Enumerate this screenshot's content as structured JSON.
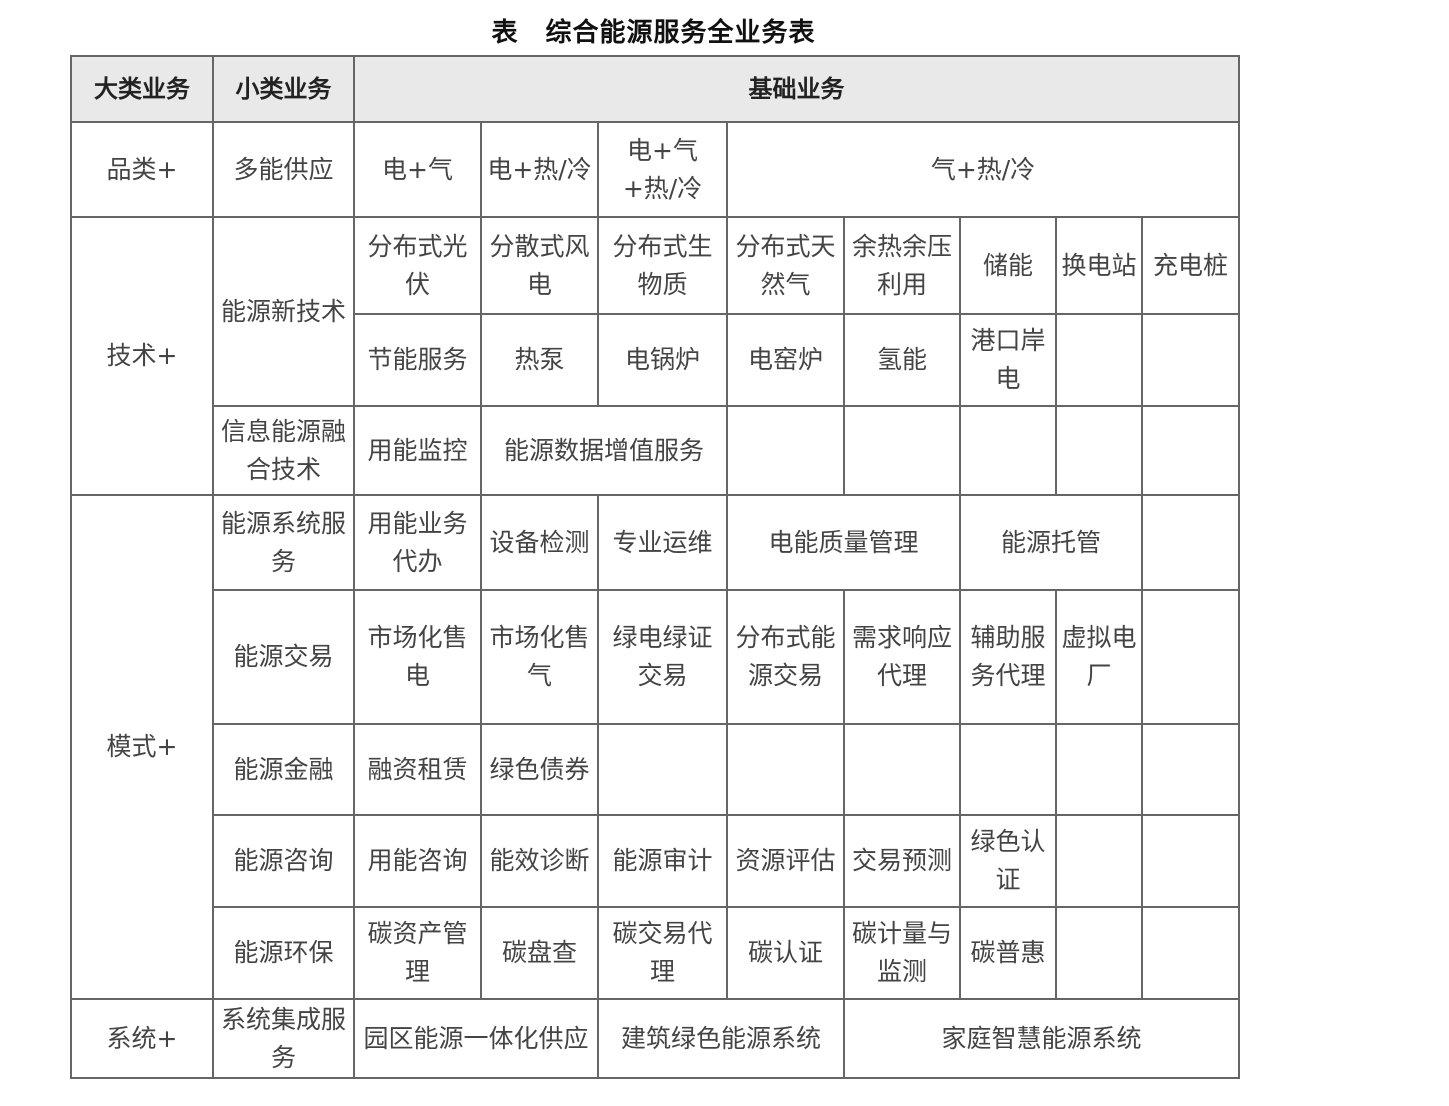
{
  "title": "表　综合能源服务全业务表",
  "header": {
    "major": "大类业务",
    "minor": "小类业务",
    "basic": "基础业务"
  },
  "rows": {
    "r1": {
      "major": "品类+",
      "minor": "多能供应",
      "c": [
        "电+气",
        "电+热/冷",
        "电+气+热/冷",
        "气+热/冷"
      ]
    },
    "r2": {
      "major": "技术+",
      "minor": "能源新技术",
      "c": [
        "分布式光伏",
        "分散式风电",
        "分布式生物质",
        "分布式天然气",
        "余热余压利用",
        "储能",
        "换电站",
        "充电桩"
      ]
    },
    "r3": {
      "c": [
        "节能服务",
        "热泵",
        "电锅炉",
        "电窑炉",
        "氢能",
        "港口岸电",
        "",
        ""
      ]
    },
    "r4": {
      "minor": "信息能源融合技术",
      "c": [
        "用能监控",
        "能源数据增值服务",
        "",
        "",
        "",
        "",
        ""
      ]
    },
    "r5": {
      "major": "模式+",
      "minor": "能源系统服务",
      "c": [
        "用能业务代办",
        "设备检测",
        "专业运维",
        "电能质量管理",
        "能源托管",
        ""
      ]
    },
    "r6": {
      "minor": "能源交易",
      "c": [
        "市场化售电",
        "市场化售气",
        "绿电绿证交易",
        "分布式能源交易",
        "需求响应代理",
        "辅助服务代理",
        "虚拟电厂",
        ""
      ]
    },
    "r7": {
      "minor": "能源金融",
      "c": [
        "融资租赁",
        "绿色债券",
        "",
        "",
        "",
        "",
        "",
        ""
      ]
    },
    "r8": {
      "minor": "能源咨询",
      "c": [
        "用能咨询",
        "能效诊断",
        "能源审计",
        "资源评估",
        "交易预测",
        "绿色认证",
        "",
        ""
      ]
    },
    "r9": {
      "minor": "能源环保",
      "c": [
        "碳资产管理",
        "碳盘查",
        "碳交易代理",
        "碳认证",
        "碳计量与监测",
        "碳普惠",
        "",
        ""
      ]
    },
    "r10": {
      "major": "系统+",
      "minor": "系统集成服务",
      "c": [
        "园区能源一体化供应",
        "建筑绿色能源系统",
        "家庭智慧能源系统"
      ]
    }
  }
}
